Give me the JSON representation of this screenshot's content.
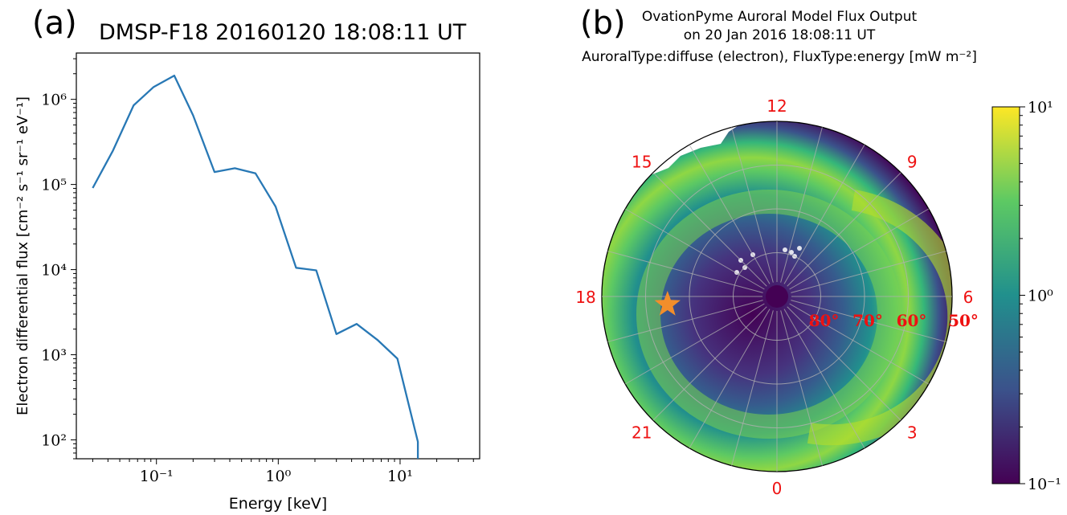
{
  "panel_a": {
    "label": "(a)",
    "title": "DMSP-F18 20160120 18:08:11 UT"
  },
  "panel_b": {
    "label": "(b)",
    "title_lines": [
      "OvationPyme Auroral Model Flux Output",
      "on 20 Jan 2016 18:08:11 UT",
      "AuroralType:diffuse (electron), FluxType:energy [mW m⁻²]"
    ]
  },
  "chart_data": [
    {
      "type": "line",
      "title": "DMSP-F18 20160120 18:08:11 UT",
      "xlabel": "Energy [keV]",
      "ylabel": "Electron differential flux [cm⁻² s⁻¹ sr⁻¹ eV⁻¹]",
      "x_scale": "log",
      "y_scale": "log",
      "xlim": [
        0.022,
        45
      ],
      "ylim": [
        60,
        3500000
      ],
      "x_ticks": [
        "10⁻¹",
        "10⁰",
        "10¹"
      ],
      "y_ticks": [
        "10²",
        "10³",
        "10⁴",
        "10⁵",
        "10⁶"
      ],
      "color": "#2878b5",
      "grid": false,
      "x": [
        0.03,
        0.044,
        0.065,
        0.095,
        0.14,
        0.2,
        0.3,
        0.44,
        0.65,
        0.95,
        1.4,
        2.05,
        3.0,
        4.4,
        6.5,
        9.5,
        14.0,
        14.0
      ],
      "y": [
        91000,
        250000,
        850000,
        1400000,
        1900000,
        650000,
        140000,
        155000,
        135000,
        55000,
        10500,
        9800,
        1750,
        2300,
        1500,
        900,
        95,
        60
      ]
    },
    {
      "type": "heatmap",
      "projection": "polar (magnetic local time / magnetic latitude)",
      "title": "OvationPyme Auroral Model Flux Output",
      "colorbar": {
        "scale": "log",
        "range": [
          0.1,
          10
        ],
        "ticks": [
          "10⁻¹",
          "10⁰",
          "10¹"
        ],
        "colormap": "viridis",
        "colors": [
          "#440154",
          "#3b528b",
          "#21908d",
          "#5dc963",
          "#fde725"
        ]
      },
      "mlt_labels": [
        "12",
        "9",
        "6",
        "3",
        "0",
        "21",
        "18",
        "15"
      ],
      "latitude_labels": [
        "80°",
        "70°",
        "60°",
        "50°"
      ],
      "label_color": "#ee1111",
      "marker": {
        "symbol": "star",
        "color": "#f28e2b",
        "mlt": 18,
        "latitude": 65
      }
    }
  ]
}
